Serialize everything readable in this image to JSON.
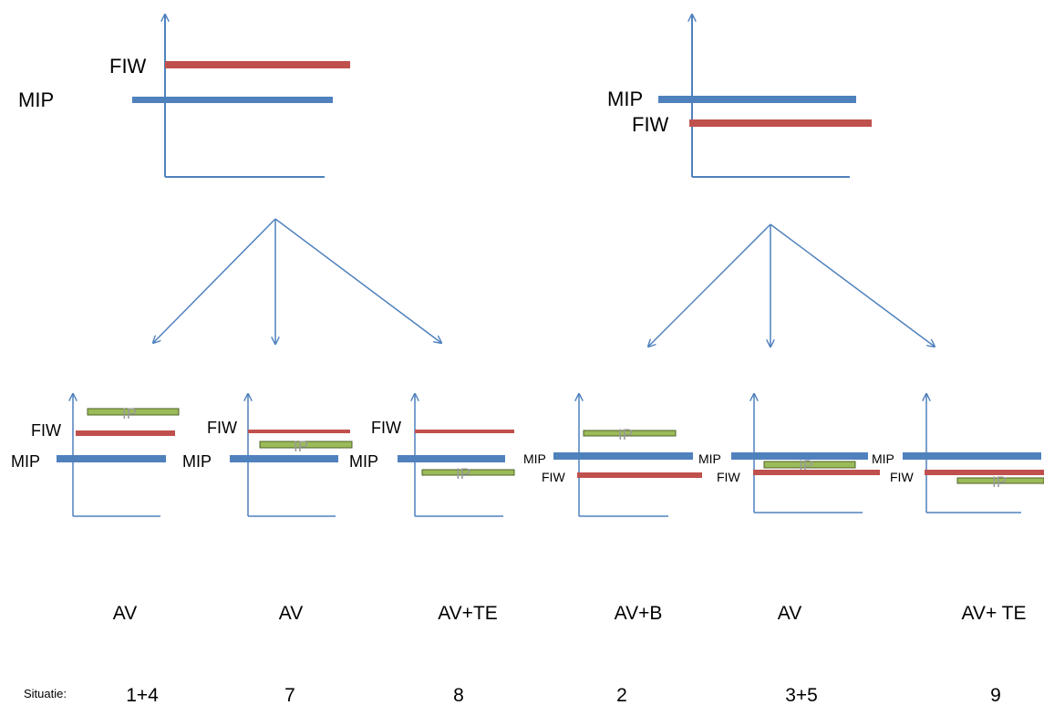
{
  "labels": {
    "mip": "MIP",
    "fiw": "FIW",
    "ip": "IP",
    "situatie": "Situatie:"
  },
  "colors": {
    "axis": "#4f81bd",
    "mip_bar": "#4f81bd",
    "fiw_bar": "#c0504d",
    "ip_bar": "#9bbb59",
    "ip_outline": "#4f6228"
  },
  "outcomes": [
    "AV",
    "AV",
    "AV+TE",
    "AV+B",
    "AV",
    "AV+ TE"
  ],
  "situations": [
    "1+4",
    "7",
    "8",
    "2",
    "3+5",
    "9"
  ]
}
